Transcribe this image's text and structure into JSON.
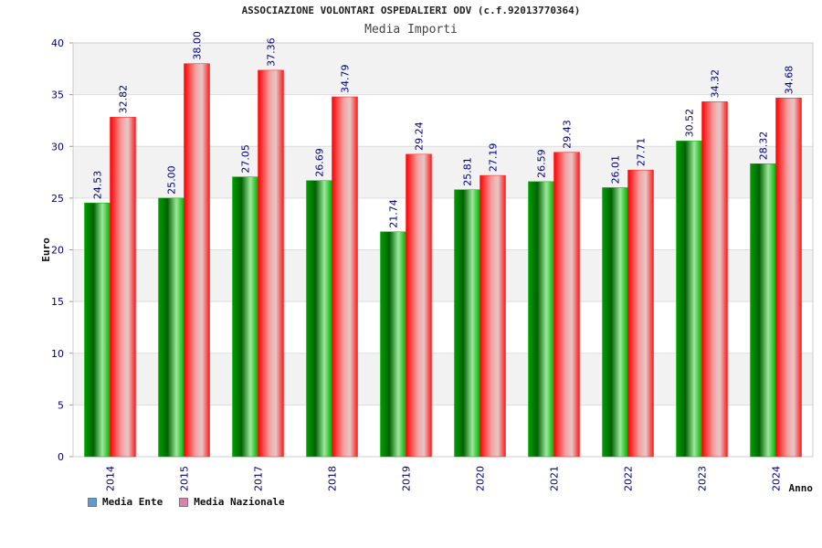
{
  "title": "ASSOCIAZIONE VOLONTARI OSPEDALIERI ODV (c.f.92013770364)",
  "subtitle": "Media Importi",
  "chart_data": {
    "type": "bar",
    "categories": [
      "2014",
      "2015",
      "2017",
      "2018",
      "2019",
      "2020",
      "2021",
      "2022",
      "2023",
      "2024"
    ],
    "series": [
      {
        "name": "Media Ente",
        "values": [
          24.53,
          25.0,
          27.05,
          26.69,
          21.74,
          25.81,
          26.59,
          26.01,
          30.52,
          28.32
        ],
        "color": "#00b000",
        "legend_color": "#5b9bd5"
      },
      {
        "name": "Media Nazionale",
        "values": [
          32.82,
          38.0,
          37.36,
          34.79,
          29.24,
          27.19,
          29.43,
          27.71,
          34.32,
          34.68
        ],
        "color": "#ff1a1a",
        "legend_color": "#e07fb0"
      }
    ],
    "data_labels": [
      [
        "24.53",
        "25.00",
        "27.05",
        "26.69",
        "21.74",
        "25.81",
        "26.59",
        "26.01",
        "30.52",
        "28.32"
      ],
      [
        "32.82",
        "38.00",
        "37.36",
        "34.79",
        "29.24",
        "27.19",
        "29.43",
        "27.71",
        "34.32",
        "34.68"
      ]
    ],
    "xlabel": "Anno",
    "ylabel": "Euro",
    "ylim": [
      0,
      40
    ],
    "yticks": [
      "0",
      "5",
      "10",
      "15",
      "20",
      "25",
      "30",
      "35",
      "40"
    ],
    "grid": true,
    "legend_position": "bottom-left",
    "label_color": "#000080"
  }
}
